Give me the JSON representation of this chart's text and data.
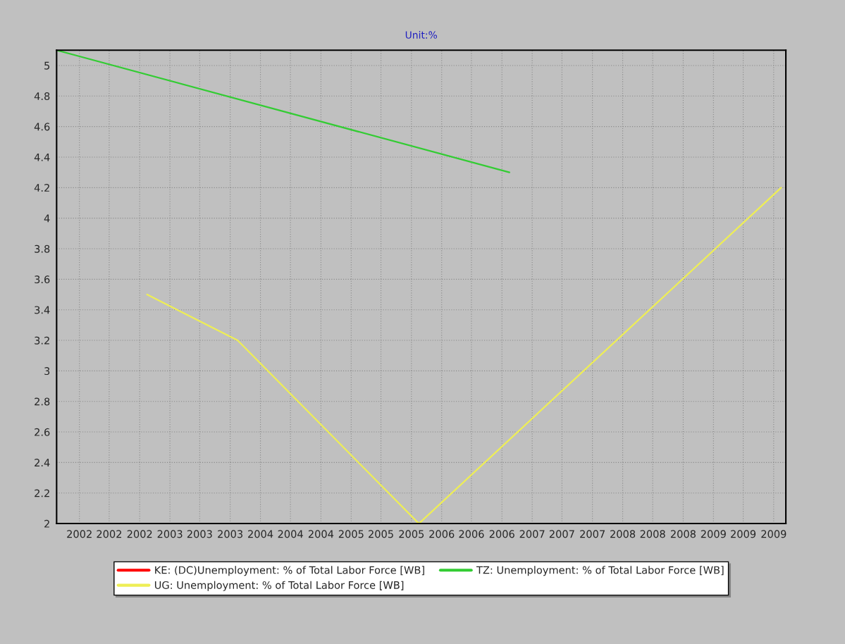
{
  "chart_data": {
    "type": "line",
    "title": "Unit:%",
    "xlim": [
      "2001-10",
      "2009-10-20"
    ],
    "xticks": [
      {
        "value": "2002-01",
        "label": "2002"
      },
      {
        "value": "2002-05",
        "label": "2002"
      },
      {
        "value": "2002-09",
        "label": "2002"
      },
      {
        "value": "2003-01",
        "label": "2003"
      },
      {
        "value": "2003-05",
        "label": "2003"
      },
      {
        "value": "2003-09",
        "label": "2003"
      },
      {
        "value": "2004-01",
        "label": "2004"
      },
      {
        "value": "2004-05",
        "label": "2004"
      },
      {
        "value": "2004-09",
        "label": "2004"
      },
      {
        "value": "2005-01",
        "label": "2005"
      },
      {
        "value": "2005-05",
        "label": "2005"
      },
      {
        "value": "2005-09",
        "label": "2005"
      },
      {
        "value": "2006-01",
        "label": "2006"
      },
      {
        "value": "2006-05",
        "label": "2006"
      },
      {
        "value": "2006-09",
        "label": "2006"
      },
      {
        "value": "2007-01",
        "label": "2007"
      },
      {
        "value": "2007-05",
        "label": "2007"
      },
      {
        "value": "2007-09",
        "label": "2007"
      },
      {
        "value": "2008-01",
        "label": "2008"
      },
      {
        "value": "2008-05",
        "label": "2008"
      },
      {
        "value": "2008-09",
        "label": "2008"
      },
      {
        "value": "2009-01",
        "label": "2009"
      },
      {
        "value": "2009-05",
        "label": "2009"
      },
      {
        "value": "2009-09",
        "label": "2009"
      }
    ],
    "ylim": [
      2,
      5.1
    ],
    "yticks": [
      2,
      2.2,
      2.4,
      2.6,
      2.8,
      3,
      3.2,
      3.4,
      3.6,
      3.8,
      4,
      4.2,
      4.4,
      4.6,
      4.8,
      5
    ],
    "grid": true,
    "legend": "bottom",
    "series": [
      {
        "name": "KE: (DC)Unemployment: % of Total Labor Force [WB]",
        "color": "#ff0000"
      },
      {
        "name": "TZ: Unemployment: % of Total Labor Force [WB]",
        "color": "#33cc33",
        "x": [
          "2001-10",
          "2006-10"
        ],
        "values": [
          5.1,
          4.3
        ]
      },
      {
        "name": "UG: Unemployment: % of Total Labor Force [WB]",
        "color": "#eeee55",
        "x": [
          "2002-10",
          "2003-10",
          "2005-10",
          "2009-10"
        ],
        "values": [
          3.5,
          3.2,
          2.0,
          4.2
        ]
      }
    ]
  }
}
